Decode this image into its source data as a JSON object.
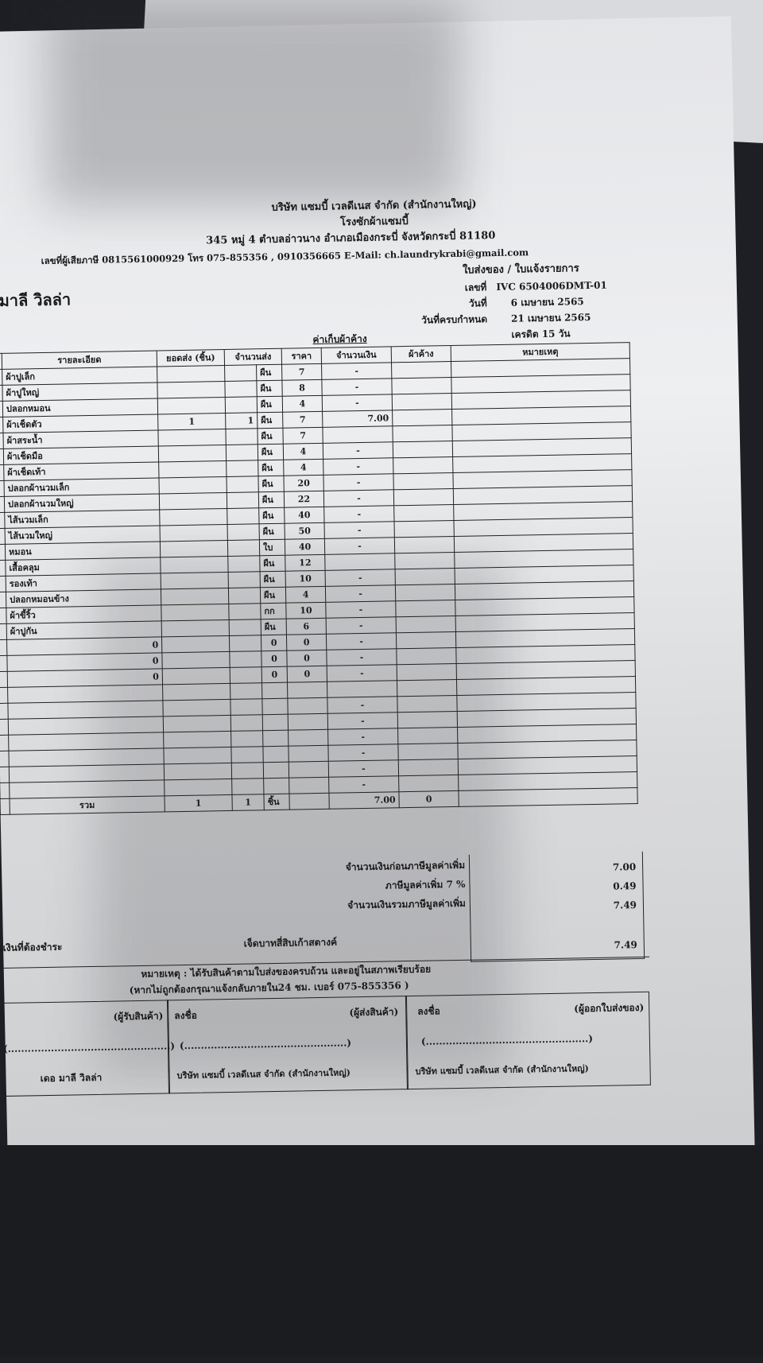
{
  "company": {
    "name": "บริษัท แซมบี้ เวลดีเนส จำกัด (สำนักงานใหญ่)",
    "plant": "โรงซักผ้าแซมบี้",
    "address": "345 หมู่ 4 ตำบลอ่าวนาง อำเภอเมืองกระบี่ จังหวัดกระบี่ 81180",
    "contact": "เลขที่ผู้เสียภาษี 0815561000929 โทร 075-855356 , 0910356665 E-Mail: ch.laundrykrabi@gmail.com"
  },
  "doc_title": "ใบส่งของ / ใบแจ้งรายการ",
  "customer": "มาลี วิลล่า",
  "meta": [
    {
      "label": "เลขที่",
      "value": "IVC 6504006DMT-01"
    },
    {
      "label": "วันที่",
      "value": "6 เมษายน 2565"
    },
    {
      "label": "วันที่ครบกำหนด",
      "value": "21 เมษายน 2565"
    },
    {
      "label": "",
      "value": "เครดิต 15 วัน"
    }
  ],
  "section_label": "ค่าเก็บผ้าค้าง",
  "table": {
    "headers": [
      "รายละเอียด",
      "ยอดส่ง (ชิ้น)",
      "จำนวนส่ง",
      "ราคา",
      "จำนวนเงิน",
      "ผ้าค้าง",
      "หมายเหตุ"
    ],
    "rows": [
      {
        "desc": "ผ้าปูเล็ก",
        "sent": "",
        "qty": "",
        "unit": "ผืน",
        "price": "7",
        "amount": "-"
      },
      {
        "desc": "ผ้าปูใหญ่",
        "sent": "",
        "qty": "",
        "unit": "ผืน",
        "price": "8",
        "amount": "-"
      },
      {
        "desc": "ปลอกหมอน",
        "sent": "",
        "qty": "",
        "unit": "ผืน",
        "price": "4",
        "amount": "-"
      },
      {
        "desc": "ผ้าเช็ดตัว",
        "sent": "1",
        "qty": "1",
        "unit": "ผืน",
        "price": "7",
        "amount": "7.00"
      },
      {
        "desc": "ผ้าสระน้ำ",
        "sent": "",
        "qty": "",
        "unit": "ผืน",
        "price": "7",
        "amount": ""
      },
      {
        "desc": "ผ้าเช็ดมือ",
        "sent": "",
        "qty": "",
        "unit": "ผืน",
        "price": "4",
        "amount": "-"
      },
      {
        "desc": "ผ้าเช็ดเท้า",
        "sent": "",
        "qty": "",
        "unit": "ผืน",
        "price": "4",
        "amount": "-"
      },
      {
        "desc": "ปลอกผ้านวมเล็ก",
        "sent": "",
        "qty": "",
        "unit": "ผืน",
        "price": "20",
        "amount": "-"
      },
      {
        "desc": "ปลอกผ้านวมใหญ่",
        "sent": "",
        "qty": "",
        "unit": "ผืน",
        "price": "22",
        "amount": "-"
      },
      {
        "desc": "ไส้นวมเล็ก",
        "sent": "",
        "qty": "",
        "unit": "ผืน",
        "price": "40",
        "amount": "-"
      },
      {
        "desc": "ไส้นวมใหญ่",
        "sent": "",
        "qty": "",
        "unit": "ผืน",
        "price": "50",
        "amount": "-"
      },
      {
        "desc": "หมอน",
        "sent": "",
        "qty": "",
        "unit": "ใบ",
        "price": "40",
        "amount": "-"
      },
      {
        "desc": "เสื้อคลุม",
        "sent": "",
        "qty": "",
        "unit": "ผืน",
        "price": "12",
        "amount": ""
      },
      {
        "desc": "รองเท้า",
        "sent": "",
        "qty": "",
        "unit": "ผืน",
        "price": "10",
        "amount": "-"
      },
      {
        "desc": "ปลอกหมอนข้าง",
        "sent": "",
        "qty": "",
        "unit": "ผืน",
        "price": "4",
        "amount": "-"
      },
      {
        "desc": "ผ้าขี้ริ้ว",
        "sent": "",
        "qty": "",
        "unit": "กก",
        "price": "10",
        "amount": "-"
      },
      {
        "desc": "ผ้าปูกัน",
        "sent": "",
        "qty": "",
        "unit": "ผืน",
        "price": "6",
        "amount": "-"
      },
      {
        "desc": "0",
        "sent": "",
        "qty": "",
        "unit": "0",
        "price": "0",
        "amount": "-"
      },
      {
        "desc": "0",
        "sent": "",
        "qty": "",
        "unit": "0",
        "price": "0",
        "amount": "-"
      },
      {
        "desc": "0",
        "sent": "",
        "qty": "",
        "unit": "0",
        "price": "0",
        "amount": "-"
      },
      {
        "desc": "",
        "sent": "",
        "qty": "",
        "unit": "",
        "price": "",
        "amount": ""
      },
      {
        "desc": "",
        "sent": "",
        "qty": "",
        "unit": "",
        "price": "",
        "amount": "-"
      },
      {
        "desc": "",
        "sent": "",
        "qty": "",
        "unit": "",
        "price": "",
        "amount": "-"
      },
      {
        "desc": "",
        "sent": "",
        "qty": "",
        "unit": "",
        "price": "",
        "amount": "-"
      },
      {
        "desc": "",
        "sent": "",
        "qty": "",
        "unit": "",
        "price": "",
        "amount": "-"
      },
      {
        "desc": "",
        "sent": "",
        "qty": "",
        "unit": "",
        "price": "",
        "amount": "-"
      },
      {
        "desc": "",
        "sent": "",
        "qty": "",
        "unit": "",
        "price": "",
        "amount": "-"
      }
    ],
    "total": {
      "label": "รวม",
      "sent": "1",
      "qty": "1",
      "unit": "ชิ้น",
      "amount": "7.00",
      "pending": "0"
    }
  },
  "summary": {
    "subtotal_label": "จำนวนเงินก่อนภาษีมูลค่าเพิ่ม",
    "subtotal": "7.00",
    "vat_label": "ภาษีมูลค่าเพิ่ม 7 %",
    "vat": "0.49",
    "grand_label": "จำนวนเงินรวมภาษีมูลค่าเพิ่ม",
    "grand": "7.49",
    "payable_label": "จำนวนเงินที่ต้องชำระ",
    "payable_words": "เจ็ดบาทสี่สิบเก้าสตางค์",
    "payable": "7.49"
  },
  "notes": {
    "line1": "หมายเหตุ : ได้รับสินค้าตามใบส่งของครบถ้วน และอยู่ในสภาพเรียบร้อย",
    "line2": "(หากไม่ถูกต้องกรุณาแจ้งกลับภายใน24 ชม.  เบอร์ 075-855356 )"
  },
  "signatures": [
    {
      "sign": "",
      "role": "(ผู้รับสินค้า)",
      "paren": "(.................................................)",
      "org": "เดอ มาลี วิลล่า"
    },
    {
      "sign": "ลงชื่อ",
      "role": "(ผู้ส่งสินค้า)",
      "paren": "(.................................................)",
      "org": "บริษัท แซมบี้ เวลดีเนส จำกัด (สำนักงานใหญ่)"
    },
    {
      "sign": "ลงชื่อ",
      "role": "(ผู้ออกใบส่งของ)",
      "paren": "(.................................................)",
      "org": "บริษัท แซมบี้ เวลดีเนส จำกัด (สำนักงานใหญ่)"
    }
  ]
}
